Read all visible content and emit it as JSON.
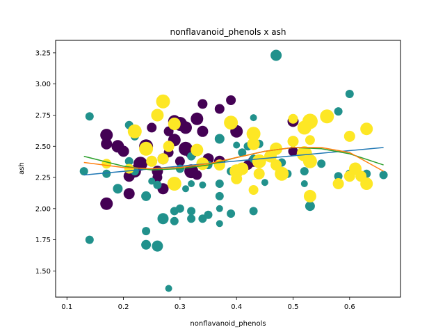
{
  "chart_data": {
    "type": "scatter",
    "title": "nonflavanoid_phenols x ash",
    "xlabel": "nonflavanoid_phenols",
    "ylabel": "ash",
    "xlim": [
      0.08,
      0.69
    ],
    "ylim": [
      1.29,
      3.35
    ],
    "xticks": [
      0.1,
      0.2,
      0.3,
      0.4,
      0.5,
      0.6
    ],
    "yticks": [
      1.5,
      1.75,
      2.0,
      2.25,
      2.5,
      2.75,
      3.0,
      3.25
    ],
    "grid": false,
    "legend": "none",
    "colors": {
      "class_0": "#440154",
      "class_1": "#21918c",
      "class_2": "#fde725"
    },
    "points": [
      {
        "x": 0.17,
        "y": 2.59,
        "c": 0,
        "s": 9
      },
      {
        "x": 0.17,
        "y": 2.52,
        "c": 0,
        "s": 8
      },
      {
        "x": 0.17,
        "y": 2.04,
        "c": 0,
        "s": 9
      },
      {
        "x": 0.19,
        "y": 2.5,
        "c": 0,
        "s": 9
      },
      {
        "x": 0.2,
        "y": 2.46,
        "c": 0,
        "s": 8
      },
      {
        "x": 0.21,
        "y": 2.26,
        "c": 0,
        "s": 8
      },
      {
        "x": 0.21,
        "y": 2.12,
        "c": 0,
        "s": 8
      },
      {
        "x": 0.22,
        "y": 2.3,
        "c": 0,
        "s": 9
      },
      {
        "x": 0.23,
        "y": 2.36,
        "c": 0,
        "s": 10
      },
      {
        "x": 0.24,
        "y": 2.5,
        "c": 0,
        "s": 10
      },
      {
        "x": 0.25,
        "y": 2.65,
        "c": 0,
        "s": 7
      },
      {
        "x": 0.26,
        "y": 2.3,
        "c": 0,
        "s": 8
      },
      {
        "x": 0.26,
        "y": 2.25,
        "c": 0,
        "s": 7
      },
      {
        "x": 0.27,
        "y": 2.4,
        "c": 0,
        "s": 8
      },
      {
        "x": 0.27,
        "y": 2.16,
        "c": 0,
        "s": 8
      },
      {
        "x": 0.28,
        "y": 2.62,
        "c": 0,
        "s": 7
      },
      {
        "x": 0.28,
        "y": 2.45,
        "c": 0,
        "s": 7
      },
      {
        "x": 0.29,
        "y": 2.7,
        "c": 0,
        "s": 9
      },
      {
        "x": 0.29,
        "y": 2.55,
        "c": 0,
        "s": 9
      },
      {
        "x": 0.3,
        "y": 2.68,
        "c": 0,
        "s": 10
      },
      {
        "x": 0.3,
        "y": 2.38,
        "c": 0,
        "s": 7
      },
      {
        "x": 0.31,
        "y": 2.48,
        "c": 0,
        "s": 10
      },
      {
        "x": 0.31,
        "y": 2.65,
        "c": 0,
        "s": 9
      },
      {
        "x": 0.32,
        "y": 2.3,
        "c": 0,
        "s": 10
      },
      {
        "x": 0.32,
        "y": 2.45,
        "c": 0,
        "s": 9
      },
      {
        "x": 0.33,
        "y": 2.72,
        "c": 0,
        "s": 9
      },
      {
        "x": 0.33,
        "y": 2.27,
        "c": 0,
        "s": 7
      },
      {
        "x": 0.34,
        "y": 2.84,
        "c": 0,
        "s": 7
      },
      {
        "x": 0.34,
        "y": 2.62,
        "c": 0,
        "s": 8
      },
      {
        "x": 0.35,
        "y": 2.4,
        "c": 0,
        "s": 8
      },
      {
        "x": 0.37,
        "y": 2.8,
        "c": 0,
        "s": 7
      },
      {
        "x": 0.37,
        "y": 2.38,
        "c": 0,
        "s": 8
      },
      {
        "x": 0.39,
        "y": 2.87,
        "c": 0,
        "s": 7
      },
      {
        "x": 0.4,
        "y": 2.62,
        "c": 0,
        "s": 9
      },
      {
        "x": 0.42,
        "y": 2.35,
        "c": 0,
        "s": 7
      },
      {
        "x": 0.43,
        "y": 2.38,
        "c": 0,
        "s": 8
      },
      {
        "x": 0.5,
        "y": 2.7,
        "c": 0,
        "s": 8
      },
      {
        "x": 0.5,
        "y": 2.46,
        "c": 0,
        "s": 7
      },
      {
        "x": 0.13,
        "y": 2.3,
        "c": 1,
        "s": 6
      },
      {
        "x": 0.14,
        "y": 2.74,
        "c": 1,
        "s": 6
      },
      {
        "x": 0.14,
        "y": 1.75,
        "c": 1,
        "s": 6
      },
      {
        "x": 0.17,
        "y": 2.28,
        "c": 1,
        "s": 6
      },
      {
        "x": 0.19,
        "y": 2.16,
        "c": 1,
        "s": 7
      },
      {
        "x": 0.21,
        "y": 2.67,
        "c": 1,
        "s": 6
      },
      {
        "x": 0.21,
        "y": 2.38,
        "c": 1,
        "s": 6
      },
      {
        "x": 0.22,
        "y": 2.58,
        "c": 1,
        "s": 6
      },
      {
        "x": 0.22,
        "y": 2.3,
        "c": 1,
        "s": 6
      },
      {
        "x": 0.24,
        "y": 2.1,
        "c": 1,
        "s": 7
      },
      {
        "x": 0.24,
        "y": 1.82,
        "c": 1,
        "s": 6
      },
      {
        "x": 0.24,
        "y": 1.71,
        "c": 1,
        "s": 7
      },
      {
        "x": 0.25,
        "y": 2.22,
        "c": 1,
        "s": 5
      },
      {
        "x": 0.26,
        "y": 2.19,
        "c": 1,
        "s": 6
      },
      {
        "x": 0.26,
        "y": 1.7,
        "c": 1,
        "s": 8
      },
      {
        "x": 0.27,
        "y": 2.4,
        "c": 1,
        "s": 6
      },
      {
        "x": 0.27,
        "y": 1.92,
        "c": 1,
        "s": 8
      },
      {
        "x": 0.28,
        "y": 1.36,
        "c": 1,
        "s": 5
      },
      {
        "x": 0.29,
        "y": 1.98,
        "c": 1,
        "s": 6
      },
      {
        "x": 0.29,
        "y": 1.9,
        "c": 1,
        "s": 6
      },
      {
        "x": 0.3,
        "y": 2.32,
        "c": 1,
        "s": 6
      },
      {
        "x": 0.3,
        "y": 2.0,
        "c": 1,
        "s": 6
      },
      {
        "x": 0.31,
        "y": 2.16,
        "c": 1,
        "s": 5
      },
      {
        "x": 0.32,
        "y": 2.42,
        "c": 1,
        "s": 6
      },
      {
        "x": 0.32,
        "y": 2.2,
        "c": 1,
        "s": 5
      },
      {
        "x": 0.32,
        "y": 1.98,
        "c": 1,
        "s": 6
      },
      {
        "x": 0.32,
        "y": 1.92,
        "c": 1,
        "s": 6
      },
      {
        "x": 0.34,
        "y": 2.19,
        "c": 1,
        "s": 5
      },
      {
        "x": 0.34,
        "y": 1.92,
        "c": 1,
        "s": 6
      },
      {
        "x": 0.35,
        "y": 1.95,
        "c": 1,
        "s": 6
      },
      {
        "x": 0.35,
        "y": 2.35,
        "c": 1,
        "s": 6
      },
      {
        "x": 0.37,
        "y": 2.56,
        "c": 1,
        "s": 7
      },
      {
        "x": 0.37,
        "y": 2.2,
        "c": 1,
        "s": 6
      },
      {
        "x": 0.37,
        "y": 2.1,
        "c": 1,
        "s": 6
      },
      {
        "x": 0.37,
        "y": 2.0,
        "c": 1,
        "s": 5
      },
      {
        "x": 0.37,
        "y": 1.88,
        "c": 1,
        "s": 5
      },
      {
        "x": 0.39,
        "y": 2.3,
        "c": 1,
        "s": 6
      },
      {
        "x": 0.39,
        "y": 1.96,
        "c": 1,
        "s": 6
      },
      {
        "x": 0.4,
        "y": 2.51,
        "c": 1,
        "s": 5
      },
      {
        "x": 0.41,
        "y": 2.45,
        "c": 1,
        "s": 6
      },
      {
        "x": 0.42,
        "y": 2.5,
        "c": 1,
        "s": 6
      },
      {
        "x": 0.43,
        "y": 2.73,
        "c": 1,
        "s": 5
      },
      {
        "x": 0.43,
        "y": 2.4,
        "c": 1,
        "s": 6
      },
      {
        "x": 0.43,
        "y": 1.98,
        "c": 1,
        "s": 6
      },
      {
        "x": 0.44,
        "y": 2.52,
        "c": 1,
        "s": 6
      },
      {
        "x": 0.45,
        "y": 2.21,
        "c": 1,
        "s": 5
      },
      {
        "x": 0.47,
        "y": 3.23,
        "c": 1,
        "s": 8
      },
      {
        "x": 0.48,
        "y": 2.37,
        "c": 1,
        "s": 6
      },
      {
        "x": 0.49,
        "y": 2.28,
        "c": 1,
        "s": 6
      },
      {
        "x": 0.52,
        "y": 2.2,
        "c": 1,
        "s": 5
      },
      {
        "x": 0.52,
        "y": 2.3,
        "c": 1,
        "s": 6
      },
      {
        "x": 0.53,
        "y": 2.02,
        "c": 1,
        "s": 7
      },
      {
        "x": 0.55,
        "y": 2.36,
        "c": 1,
        "s": 6
      },
      {
        "x": 0.58,
        "y": 2.78,
        "c": 1,
        "s": 6
      },
      {
        "x": 0.58,
        "y": 2.26,
        "c": 1,
        "s": 6
      },
      {
        "x": 0.6,
        "y": 2.92,
        "c": 1,
        "s": 6
      },
      {
        "x": 0.6,
        "y": 2.28,
        "c": 1,
        "s": 6
      },
      {
        "x": 0.63,
        "y": 2.28,
        "c": 1,
        "s": 6
      },
      {
        "x": 0.66,
        "y": 2.27,
        "c": 1,
        "s": 6
      },
      {
        "x": 0.17,
        "y": 2.36,
        "c": 2,
        "s": 7
      },
      {
        "x": 0.21,
        "y": 2.32,
        "c": 2,
        "s": 7
      },
      {
        "x": 0.22,
        "y": 2.62,
        "c": 2,
        "s": 10
      },
      {
        "x": 0.24,
        "y": 2.48,
        "c": 2,
        "s": 10
      },
      {
        "x": 0.25,
        "y": 2.38,
        "c": 2,
        "s": 8
      },
      {
        "x": 0.26,
        "y": 2.75,
        "c": 2,
        "s": 9
      },
      {
        "x": 0.27,
        "y": 2.86,
        "c": 2,
        "s": 10
      },
      {
        "x": 0.27,
        "y": 2.4,
        "c": 2,
        "s": 8
      },
      {
        "x": 0.28,
        "y": 2.5,
        "c": 2,
        "s": 8
      },
      {
        "x": 0.29,
        "y": 2.68,
        "c": 2,
        "s": 9
      },
      {
        "x": 0.29,
        "y": 2.2,
        "c": 2,
        "s": 10
      },
      {
        "x": 0.33,
        "y": 2.47,
        "c": 2,
        "s": 9
      },
      {
        "x": 0.34,
        "y": 2.36,
        "c": 2,
        "s": 9
      },
      {
        "x": 0.37,
        "y": 2.35,
        "c": 2,
        "s": 8
      },
      {
        "x": 0.39,
        "y": 2.69,
        "c": 2,
        "s": 10
      },
      {
        "x": 0.4,
        "y": 2.3,
        "c": 2,
        "s": 10
      },
      {
        "x": 0.4,
        "y": 2.24,
        "c": 2,
        "s": 8
      },
      {
        "x": 0.41,
        "y": 2.32,
        "c": 2,
        "s": 9
      },
      {
        "x": 0.43,
        "y": 2.6,
        "c": 2,
        "s": 10
      },
      {
        "x": 0.43,
        "y": 2.52,
        "c": 2,
        "s": 9
      },
      {
        "x": 0.43,
        "y": 2.15,
        "c": 2,
        "s": 7
      },
      {
        "x": 0.44,
        "y": 2.38,
        "c": 2,
        "s": 10
      },
      {
        "x": 0.44,
        "y": 2.28,
        "c": 2,
        "s": 8
      },
      {
        "x": 0.46,
        "y": 2.42,
        "c": 2,
        "s": 9
      },
      {
        "x": 0.47,
        "y": 2.48,
        "c": 2,
        "s": 9
      },
      {
        "x": 0.47,
        "y": 2.35,
        "c": 2,
        "s": 8
      },
      {
        "x": 0.48,
        "y": 2.28,
        "c": 2,
        "s": 10
      },
      {
        "x": 0.5,
        "y": 2.72,
        "c": 2,
        "s": 7
      },
      {
        "x": 0.5,
        "y": 2.54,
        "c": 2,
        "s": 8
      },
      {
        "x": 0.52,
        "y": 2.65,
        "c": 2,
        "s": 10
      },
      {
        "x": 0.52,
        "y": 2.44,
        "c": 2,
        "s": 11
      },
      {
        "x": 0.53,
        "y": 2.7,
        "c": 2,
        "s": 11
      },
      {
        "x": 0.53,
        "y": 2.55,
        "c": 2,
        "s": 7
      },
      {
        "x": 0.53,
        "y": 2.38,
        "c": 2,
        "s": 10
      },
      {
        "x": 0.53,
        "y": 2.1,
        "c": 2,
        "s": 9
      },
      {
        "x": 0.56,
        "y": 2.74,
        "c": 2,
        "s": 10
      },
      {
        "x": 0.58,
        "y": 2.2,
        "c": 2,
        "s": 8
      },
      {
        "x": 0.6,
        "y": 2.58,
        "c": 2,
        "s": 8
      },
      {
        "x": 0.6,
        "y": 2.26,
        "c": 2,
        "s": 8
      },
      {
        "x": 0.61,
        "y": 2.32,
        "c": 2,
        "s": 9
      },
      {
        "x": 0.62,
        "y": 2.26,
        "c": 2,
        "s": 8
      },
      {
        "x": 0.63,
        "y": 2.64,
        "c": 2,
        "s": 9
      },
      {
        "x": 0.63,
        "y": 2.2,
        "c": 2,
        "s": 9
      }
    ],
    "fit_lines": [
      {
        "color": "#1f77b4",
        "x": [
          0.13,
          0.66
        ],
        "y": [
          2.27,
          2.49
        ]
      },
      {
        "color": "#2ca02c",
        "x": [
          0.13,
          0.2,
          0.25,
          0.3,
          0.35,
          0.4,
          0.45,
          0.5,
          0.55,
          0.6,
          0.66
        ],
        "y": [
          2.42,
          2.34,
          2.31,
          2.32,
          2.35,
          2.41,
          2.46,
          2.49,
          2.48,
          2.44,
          2.35
        ]
      },
      {
        "color": "#ff7f0e",
        "x": [
          0.13,
          0.2,
          0.25,
          0.3,
          0.35,
          0.4,
          0.45,
          0.5,
          0.55,
          0.6,
          0.66
        ],
        "y": [
          2.37,
          2.33,
          2.32,
          2.33,
          2.36,
          2.41,
          2.46,
          2.49,
          2.49,
          2.45,
          2.3
        ]
      }
    ]
  }
}
